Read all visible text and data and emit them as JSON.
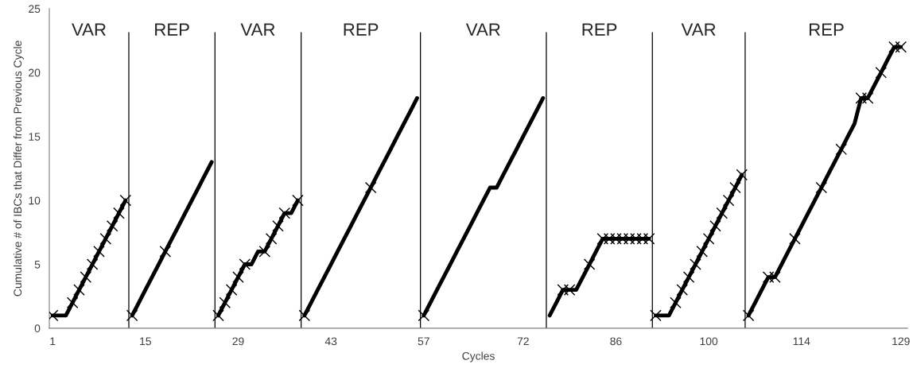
{
  "chart_data": {
    "type": "line",
    "xlabel": "Cycles",
    "ylabel": "Cumulative # of IBCs that Differ from Previous Cycle",
    "xlim": [
      0.5,
      130
    ],
    "xticks": [
      1,
      15,
      29,
      43,
      57,
      72,
      86,
      100,
      114,
      129
    ],
    "ylim": [
      0,
      25
    ],
    "yticks": [
      0,
      5,
      10,
      15,
      20,
      25
    ],
    "grid": false,
    "legend": false,
    "line_style": "solid",
    "annotations": [
      "VAR",
      "REP",
      "VAR",
      "REP",
      "VAR",
      "REP",
      "VAR",
      "REP"
    ],
    "ref_lines": [
      {
        "axis": "x",
        "value": 12.5,
        "color": "#000000"
      },
      {
        "axis": "x",
        "value": 25.5,
        "color": "#000000"
      },
      {
        "axis": "x",
        "value": 38.5,
        "color": "#000000"
      },
      {
        "axis": "x",
        "value": 56.5,
        "color": "#000000"
      },
      {
        "axis": "x",
        "value": 75.5,
        "color": "#000000"
      },
      {
        "axis": "x",
        "value": 91.5,
        "color": "#000000"
      },
      {
        "axis": "x",
        "value": 105.5,
        "color": "#000000"
      }
    ],
    "series": [
      {
        "color": "#000000",
        "marker": "none",
        "x": [
          1,
          2,
          3,
          4,
          5,
          6,
          7,
          8,
          9,
          10,
          11,
          12
        ],
        "values": [
          1,
          1,
          1,
          2,
          3,
          4,
          5,
          6,
          7,
          8,
          9,
          10
        ]
      },
      {
        "color": "#000000",
        "marker": "none",
        "x": [
          13,
          14,
          15,
          16,
          17,
          18,
          19,
          20,
          21,
          22,
          23,
          24,
          25
        ],
        "values": [
          1,
          2,
          3,
          4,
          5,
          6,
          7,
          8,
          9,
          10,
          11,
          12,
          13
        ]
      },
      {
        "color": "#000000",
        "marker": "none",
        "x": [
          26,
          27,
          28,
          29,
          30,
          31,
          32,
          33,
          34,
          35,
          36,
          37,
          38
        ],
        "values": [
          1,
          2,
          3,
          4,
          5,
          5,
          6,
          6,
          7,
          8,
          9,
          9,
          10
        ]
      },
      {
        "color": "#000000",
        "marker": "none",
        "x": [
          39,
          40,
          41,
          42,
          43,
          44,
          45,
          46,
          47,
          48,
          49,
          50,
          51,
          52,
          53,
          54,
          55,
          56
        ],
        "values": [
          1,
          2,
          3,
          4,
          5,
          6,
          7,
          8,
          9,
          10,
          11,
          12,
          13,
          14,
          15,
          16,
          17,
          18
        ]
      },
      {
        "color": "#000000",
        "marker": "none",
        "x": [
          57,
          58,
          59,
          60,
          61,
          62,
          63,
          64,
          65,
          66,
          67,
          68,
          69,
          70,
          71,
          72,
          73,
          74,
          75
        ],
        "values": [
          1,
          2,
          3,
          4,
          5,
          6,
          7,
          8,
          9,
          10,
          11,
          11,
          12,
          13,
          14,
          15,
          16,
          17,
          18
        ]
      },
      {
        "color": "#000000",
        "marker": "none",
        "x": [
          76,
          77,
          78,
          79,
          80,
          81,
          82,
          83,
          84,
          85,
          86,
          87,
          88,
          89,
          90,
          91
        ],
        "values": [
          1,
          2,
          3,
          3,
          3,
          4,
          5,
          6,
          7,
          7,
          7,
          7,
          7,
          7,
          7,
          7
        ]
      },
      {
        "color": "#000000",
        "marker": "none",
        "x": [
          92,
          93,
          94,
          95,
          96,
          97,
          98,
          99,
          100,
          101,
          102,
          103,
          104,
          105
        ],
        "values": [
          1,
          1,
          1,
          2,
          3,
          4,
          5,
          6,
          7,
          8,
          9,
          10,
          11,
          12
        ]
      },
      {
        "color": "#000000",
        "marker": "none",
        "x": [
          106,
          107,
          108,
          109,
          110,
          111,
          112,
          113,
          114,
          115,
          116,
          117,
          118,
          119,
          120,
          121,
          122,
          123,
          124,
          125,
          126,
          127,
          128,
          129
        ],
        "values": [
          1,
          2,
          3,
          4,
          4,
          5,
          6,
          7,
          8,
          9,
          10,
          11,
          12,
          13,
          14,
          15,
          16,
          18,
          18,
          19,
          20,
          21,
          22,
          22
        ]
      },
      {
        "type": "scatter",
        "color": "#000000",
        "marker": "cross",
        "x": [
          1,
          4,
          5,
          6,
          7,
          8,
          9,
          10,
          11,
          12,
          13,
          18,
          26,
          27,
          28,
          29,
          30,
          33,
          34,
          35,
          36,
          38,
          39,
          49,
          57,
          78,
          79,
          82,
          84,
          85,
          86,
          87,
          88,
          89,
          90,
          91,
          92,
          95,
          96,
          97,
          98,
          99,
          100,
          101,
          102,
          103,
          104,
          105,
          106,
          109,
          110,
          113,
          117,
          120,
          123,
          124,
          126,
          128,
          129
        ],
        "values": [
          1,
          2,
          3,
          4,
          5,
          6,
          7,
          8,
          9,
          10,
          1,
          6,
          1,
          2,
          3,
          4,
          5,
          6,
          7,
          8,
          9,
          10,
          1,
          11,
          1,
          3,
          3,
          5,
          7,
          7,
          7,
          7,
          7,
          7,
          7,
          7,
          1,
          2,
          3,
          4,
          5,
          6,
          7,
          8,
          9,
          10,
          11,
          12,
          1,
          4,
          4,
          7,
          11,
          14,
          18,
          18,
          20,
          22,
          22
        ]
      }
    ]
  }
}
